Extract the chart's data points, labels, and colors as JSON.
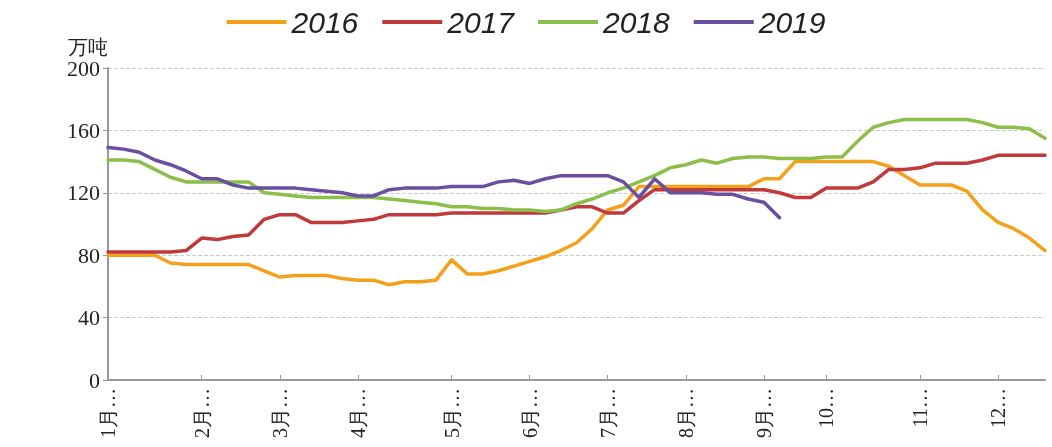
{
  "chart_data": {
    "type": "line",
    "ylabel": "万吨",
    "ylim": [
      0,
      200
    ],
    "yticks": [
      0,
      40,
      80,
      120,
      160,
      200
    ],
    "categories": [
      "1月…",
      null,
      null,
      null,
      null,
      null,
      "2月…",
      null,
      null,
      null,
      null,
      "3月…",
      null,
      null,
      null,
      null,
      "4月…",
      null,
      null,
      null,
      null,
      null,
      "5月…",
      null,
      null,
      null,
      null,
      "6月…",
      null,
      null,
      null,
      null,
      "7月…",
      null,
      null,
      null,
      null,
      "8月…",
      null,
      null,
      null,
      null,
      "9月…",
      null,
      null,
      null,
      "10…",
      null,
      null,
      null,
      null,
      null,
      "11…",
      null,
      null,
      null,
      null,
      "12…",
      null,
      null,
      null
    ],
    "grid": "y",
    "legend": "top",
    "marker": "none",
    "line_style": "solid",
    "series": [
      {
        "name": "2016",
        "color": "#f5a01a",
        "values": [
          80,
          80,
          80,
          80,
          75,
          74,
          74,
          74,
          74,
          74,
          70,
          66,
          67,
          67,
          67,
          65,
          64,
          64,
          61,
          63,
          63,
          64,
          77,
          68,
          68,
          70,
          73,
          76,
          79,
          83,
          88,
          97,
          109,
          112,
          124,
          124,
          124,
          124,
          124,
          124,
          124,
          124,
          129,
          129,
          140,
          140,
          140,
          140,
          140,
          140,
          137,
          131,
          125,
          125,
          125,
          121,
          109,
          101,
          97,
          91,
          83
        ]
      },
      {
        "name": "2017",
        "color": "#c0393b",
        "values": [
          82,
          82,
          82,
          82,
          82,
          83,
          91,
          90,
          92,
          93,
          103,
          106,
          106,
          101,
          101,
          101,
          102,
          103,
          106,
          106,
          106,
          106,
          107,
          107,
          107,
          107,
          107,
          107,
          107,
          109,
          111,
          111,
          107,
          107,
          115,
          122,
          122,
          122,
          122,
          122,
          122,
          122,
          122,
          120,
          117,
          117,
          123,
          123,
          123,
          127,
          135,
          135,
          136,
          139,
          139,
          139,
          141,
          144,
          144,
          144,
          144
        ]
      },
      {
        "name": "2018",
        "color": "#8cbf4a",
        "values": [
          141,
          141,
          140,
          135,
          130,
          127,
          127,
          127,
          127,
          127,
          120,
          119,
          118,
          117,
          117,
          117,
          117,
          117,
          116,
          115,
          114,
          113,
          111,
          111,
          110,
          110,
          109,
          109,
          108,
          109,
          113,
          116,
          120,
          123,
          127,
          131,
          136,
          138,
          141,
          139,
          142,
          143,
          143,
          142,
          142,
          142,
          143,
          143,
          153,
          162,
          165,
          167,
          167,
          167,
          167,
          167,
          165,
          162,
          162,
          161,
          155
        ]
      },
      {
        "name": "2019",
        "color": "#6a4ea0",
        "values": [
          149,
          148,
          146,
          141,
          138,
          134,
          129,
          129,
          125,
          123,
          123,
          123,
          123,
          122,
          121,
          120,
          118,
          118,
          122,
          123,
          123,
          123,
          124,
          124,
          124,
          127,
          128,
          126,
          129,
          131,
          131,
          131,
          131,
          127,
          117,
          129,
          120,
          120,
          120,
          119,
          119,
          116,
          114,
          104,
          null,
          null,
          null,
          null,
          null,
          null,
          null,
          null,
          null,
          null,
          null,
          null,
          null,
          null,
          null,
          null,
          null
        ]
      }
    ]
  }
}
